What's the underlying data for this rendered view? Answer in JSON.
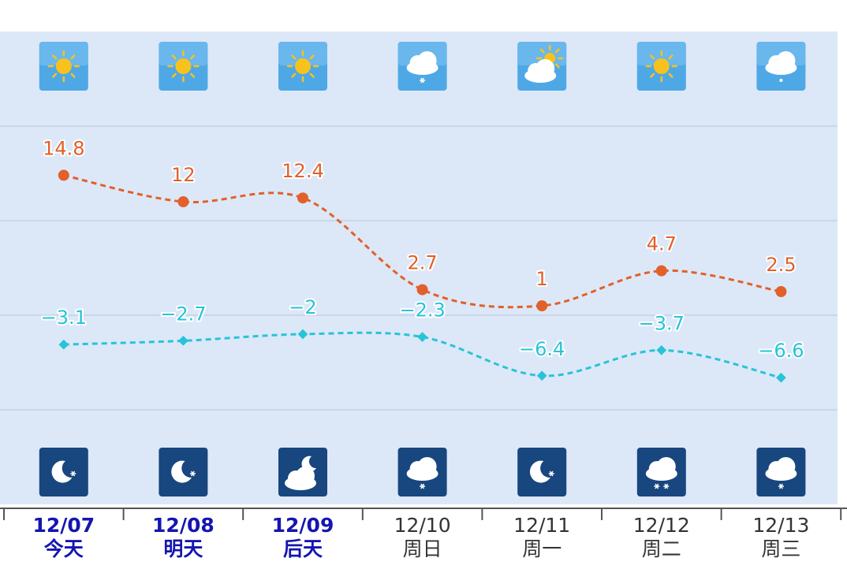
{
  "chart_data": {
    "type": "line",
    "categories": [
      "12/07",
      "12/08",
      "12/09",
      "12/10",
      "12/11",
      "12/12",
      "12/13"
    ],
    "weekdays": [
      "今天",
      "明天",
      "后天",
      "周日",
      "周一",
      "周二",
      "周三"
    ],
    "series": [
      {
        "color": "#e2602a",
        "values": [
          14.8,
          12,
          12.4,
          2.7,
          1,
          4.7,
          2.5
        ]
      },
      {
        "color": "#28c3d9",
        "values": [
          -3.1,
          -2.7,
          -2,
          -2.3,
          -6.4,
          -3.7,
          -6.6
        ],
        "value_labels": [
          "−3.1",
          "−2.7",
          "−2",
          "−2.3",
          "−6.4",
          "−3.7",
          "−6.6"
        ]
      }
    ],
    "ylim": [
      -20,
      30
    ],
    "yticks": [
      -10,
      0,
      10,
      20
    ],
    "grid": true
  }
}
